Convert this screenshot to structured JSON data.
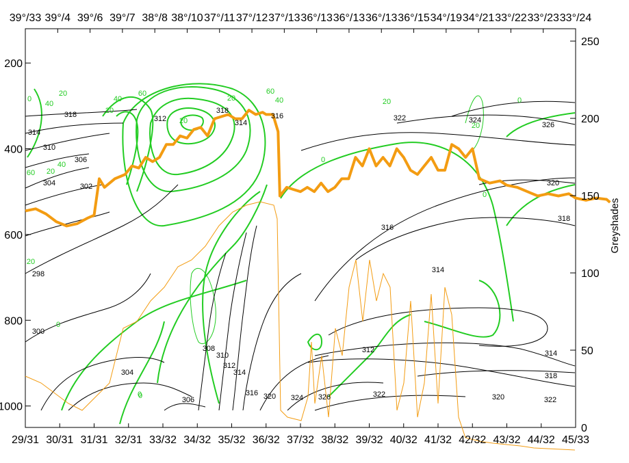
{
  "chart_data": {
    "type": "line",
    "top_ticks": [
      "39°/33",
      "39°/4",
      "39°/6",
      "39°/7",
      "38°/8",
      "38°/10",
      "37°/11",
      "37°/12",
      "37°/13",
      "36°/13",
      "36°/13",
      "36°/13",
      "36°/15",
      "34°/19",
      "34°/21",
      "33°/22",
      "33°/23",
      "33°/24"
    ],
    "bottom_ticks": [
      "29/31",
      "30/31",
      "31/31",
      "32/31",
      "33/32",
      "34/32",
      "35/32",
      "36/32",
      "37/32",
      "38/32",
      "39/32",
      "40/32",
      "41/32",
      "42/32",
      "43/32",
      "44/32",
      "45/33"
    ],
    "left_axis": {
      "ticks": [
        200,
        400,
        600,
        800,
        1000
      ],
      "range": [
        1050,
        120
      ]
    },
    "right_axis": {
      "label": "Greyshades",
      "ticks": [
        0,
        50,
        100,
        150,
        200,
        250
      ],
      "range": [
        0,
        258
      ]
    },
    "isotherm_labels": [
      "318",
      "314",
      "310",
      "306",
      "304",
      "302",
      "298",
      "300",
      "304",
      "306",
      "308",
      "310",
      "312",
      "314",
      "316",
      "320",
      "324",
      "326",
      "322",
      "312",
      "314",
      "316",
      "314",
      "318",
      "312",
      "322",
      "324",
      "326",
      "320",
      "318",
      "314",
      "318",
      "320",
      "322",
      "316"
    ],
    "green_labels": [
      "0",
      "20",
      "40",
      "60",
      "20",
      "40",
      "60",
      "40",
      "20",
      "0",
      "20",
      "0",
      "20",
      "0",
      "20",
      "0",
      "20",
      "40",
      "20",
      "60",
      "0",
      "0"
    ],
    "series": [
      {
        "color": "#f39c12",
        "values": [
          [
            0,
            545
          ],
          [
            0.3,
            540
          ],
          [
            0.6,
            552
          ],
          [
            0.9,
            570
          ],
          [
            1.2,
            580
          ],
          [
            1.5,
            575
          ],
          [
            1.8,
            562
          ],
          [
            2.0,
            555
          ],
          [
            2.15,
            470
          ],
          [
            2.3,
            490
          ],
          [
            2.6,
            470
          ],
          [
            2.9,
            460
          ],
          [
            3.1,
            440
          ],
          [
            3.3,
            445
          ],
          [
            3.5,
            420
          ],
          [
            3.7,
            430
          ],
          [
            3.9,
            420
          ],
          [
            4.1,
            390
          ],
          [
            4.3,
            390
          ],
          [
            4.5,
            370
          ],
          [
            4.7,
            375
          ],
          [
            4.9,
            355
          ],
          [
            5.1,
            350
          ],
          [
            5.3,
            370
          ],
          [
            5.5,
            330
          ],
          [
            5.7,
            325
          ],
          [
            5.9,
            320
          ],
          [
            6.1,
            330
          ],
          [
            6.3,
            330
          ],
          [
            6.5,
            310
          ],
          [
            6.7,
            320
          ],
          [
            6.9,
            315
          ],
          [
            7.0,
            320
          ],
          [
            7.2,
            320
          ],
          [
            7.35,
            360
          ],
          [
            7.4,
            510
          ],
          [
            7.6,
            490
          ],
          [
            7.8,
            495
          ],
          [
            8.0,
            500
          ],
          [
            8.2,
            490
          ],
          [
            8.4,
            500
          ],
          [
            8.6,
            480
          ],
          [
            8.8,
            500
          ],
          [
            9.0,
            490
          ],
          [
            9.2,
            470
          ],
          [
            9.4,
            470
          ],
          [
            9.6,
            420
          ],
          [
            9.8,
            440
          ],
          [
            10.0,
            400
          ],
          [
            10.2,
            440
          ],
          [
            10.4,
            420
          ],
          [
            10.6,
            440
          ],
          [
            10.8,
            400
          ],
          [
            11.0,
            420
          ],
          [
            11.2,
            450
          ],
          [
            11.4,
            460
          ],
          [
            11.6,
            440
          ],
          [
            11.8,
            420
          ],
          [
            12.0,
            450
          ],
          [
            12.2,
            450
          ],
          [
            12.4,
            390
          ],
          [
            12.6,
            400
          ],
          [
            12.8,
            420
          ],
          [
            13.0,
            400
          ],
          [
            13.2,
            470
          ],
          [
            13.5,
            480
          ],
          [
            13.8,
            475
          ],
          [
            14.0,
            485
          ],
          [
            14.3,
            490
          ],
          [
            14.6,
            500
          ],
          [
            14.9,
            510
          ],
          [
            15.2,
            505
          ],
          [
            15.5,
            510
          ],
          [
            15.8,
            505
          ],
          [
            16.0,
            515
          ],
          [
            16.3,
            520
          ],
          [
            16.6,
            515
          ],
          [
            16.9,
            518
          ],
          [
            17.0,
            525
          ]
        ]
      }
    ]
  }
}
